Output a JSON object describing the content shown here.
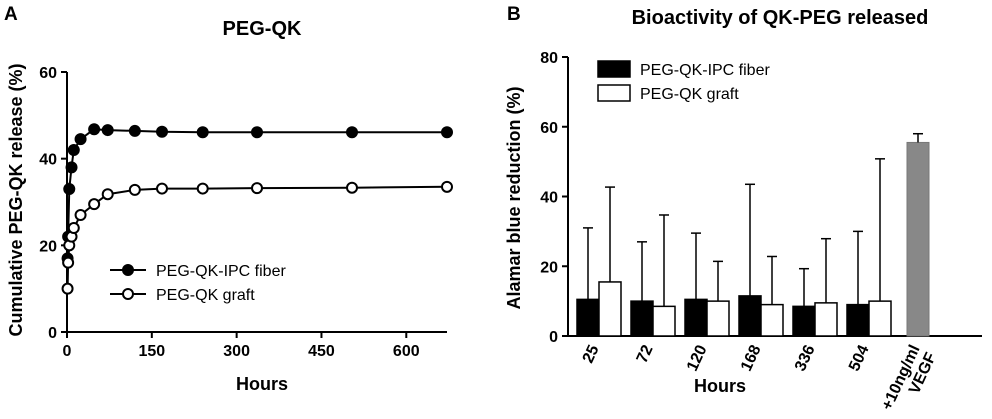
{
  "chart_data": [
    {
      "panel": "A",
      "type": "line",
      "title": "PEG-QK",
      "xlabel": "Hours",
      "ylabel": "Cumulative PEG-QK release (%)",
      "xlim": [
        0,
        672
      ],
      "ylim": [
        0,
        60
      ],
      "xticks": [
        0,
        150,
        300,
        450,
        600
      ],
      "yticks": [
        0,
        20,
        40,
        60
      ],
      "legend_position": "center",
      "series": [
        {
          "name": "PEG-QK-IPC fiber",
          "marker": "filled-circle",
          "color": "#000000",
          "x": [
            1,
            2,
            4,
            8,
            12,
            24,
            48,
            72,
            120,
            168,
            240,
            336,
            504,
            672
          ],
          "y": [
            17,
            22,
            33,
            38,
            42,
            44.5,
            46.8,
            46.6,
            46.4,
            46.2,
            46.1,
            46.1,
            46.1,
            46.1
          ],
          "error": [
            0,
            0,
            1.5,
            0,
            0,
            0,
            0,
            0,
            0,
            0,
            0,
            0,
            0,
            0
          ]
        },
        {
          "name": "PEG-QK graft",
          "marker": "open-circle",
          "color": "#000000",
          "x": [
            1,
            2,
            4,
            8,
            12,
            24,
            48,
            72,
            120,
            168,
            240,
            336,
            504,
            672
          ],
          "y": [
            10,
            16,
            20,
            22,
            24,
            27,
            29.5,
            31.8,
            32.8,
            33.1,
            33.1,
            33.2,
            33.3,
            33.5
          ],
          "error": [
            0,
            0,
            1,
            0,
            0,
            0,
            0,
            0,
            0,
            0,
            0,
            0,
            0,
            0
          ]
        }
      ]
    },
    {
      "panel": "B",
      "type": "bar",
      "title": "Bioactivity of QK-PEG released",
      "xlabel": "Hours",
      "ylabel": "Alamar blue reduction (%)",
      "ylim": [
        0,
        80
      ],
      "yticks": [
        0,
        20,
        40,
        60,
        80
      ],
      "categories": [
        "25",
        "72",
        "120",
        "168",
        "336",
        "504"
      ],
      "control": {
        "label": "+10ng/ml VEGF",
        "value": 55.5,
        "error": 2.5,
        "color": "#888888"
      },
      "legend_position": "top-left",
      "series": [
        {
          "name": "PEG-QK-IPC fiber",
          "fill": "#000000",
          "values": [
            10.5,
            10,
            10.5,
            11.5,
            8.5,
            9
          ],
          "errors": [
            20.5,
            17,
            19,
            32,
            10.8,
            21
          ]
        },
        {
          "name": "PEG-QK graft",
          "fill": "#ffffff",
          "values": [
            15.5,
            8.5,
            10,
            9,
            9.5,
            10
          ],
          "errors": [
            27.2,
            26.2,
            11.4,
            13.8,
            18.4,
            40.8
          ]
        }
      ]
    }
  ]
}
